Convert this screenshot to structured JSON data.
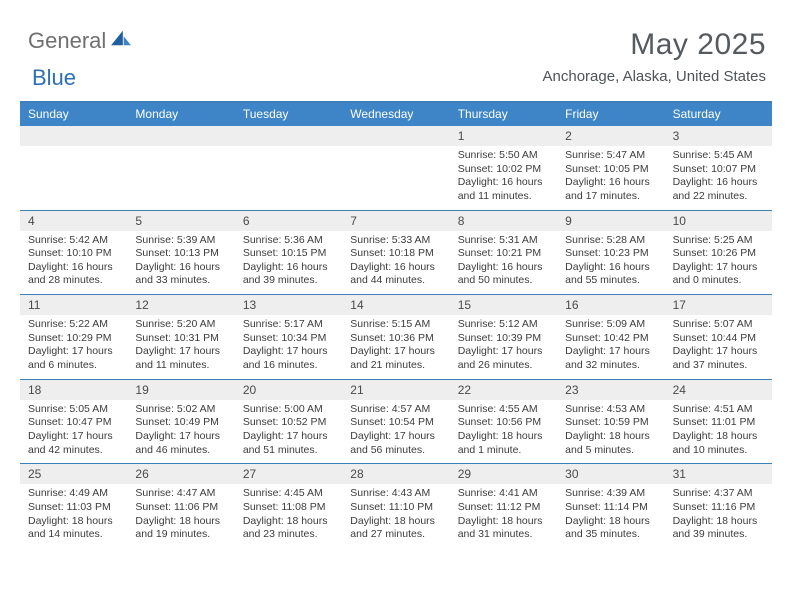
{
  "brand": {
    "part1": "General",
    "part2": "Blue"
  },
  "title": "May 2025",
  "location": "Anchorage, Alaska, United States",
  "colors": {
    "header_bar": "#3d85c6",
    "top_rule": "#3d7fb8",
    "dnum_bg": "#eeeeee",
    "text": "#3c3c3c",
    "title_text": "#555a5e"
  },
  "daysOfWeek": [
    "Sunday",
    "Monday",
    "Tuesday",
    "Wednesday",
    "Thursday",
    "Friday",
    "Saturday"
  ],
  "weeks": [
    [
      {
        "n": "",
        "l1": "",
        "l2": "",
        "l3": "",
        "l4": ""
      },
      {
        "n": "",
        "l1": "",
        "l2": "",
        "l3": "",
        "l4": ""
      },
      {
        "n": "",
        "l1": "",
        "l2": "",
        "l3": "",
        "l4": ""
      },
      {
        "n": "",
        "l1": "",
        "l2": "",
        "l3": "",
        "l4": ""
      },
      {
        "n": "1",
        "l1": "Sunrise: 5:50 AM",
        "l2": "Sunset: 10:02 PM",
        "l3": "Daylight: 16 hours",
        "l4": "and 11 minutes."
      },
      {
        "n": "2",
        "l1": "Sunrise: 5:47 AM",
        "l2": "Sunset: 10:05 PM",
        "l3": "Daylight: 16 hours",
        "l4": "and 17 minutes."
      },
      {
        "n": "3",
        "l1": "Sunrise: 5:45 AM",
        "l2": "Sunset: 10:07 PM",
        "l3": "Daylight: 16 hours",
        "l4": "and 22 minutes."
      }
    ],
    [
      {
        "n": "4",
        "l1": "Sunrise: 5:42 AM",
        "l2": "Sunset: 10:10 PM",
        "l3": "Daylight: 16 hours",
        "l4": "and 28 minutes."
      },
      {
        "n": "5",
        "l1": "Sunrise: 5:39 AM",
        "l2": "Sunset: 10:13 PM",
        "l3": "Daylight: 16 hours",
        "l4": "and 33 minutes."
      },
      {
        "n": "6",
        "l1": "Sunrise: 5:36 AM",
        "l2": "Sunset: 10:15 PM",
        "l3": "Daylight: 16 hours",
        "l4": "and 39 minutes."
      },
      {
        "n": "7",
        "l1": "Sunrise: 5:33 AM",
        "l2": "Sunset: 10:18 PM",
        "l3": "Daylight: 16 hours",
        "l4": "and 44 minutes."
      },
      {
        "n": "8",
        "l1": "Sunrise: 5:31 AM",
        "l2": "Sunset: 10:21 PM",
        "l3": "Daylight: 16 hours",
        "l4": "and 50 minutes."
      },
      {
        "n": "9",
        "l1": "Sunrise: 5:28 AM",
        "l2": "Sunset: 10:23 PM",
        "l3": "Daylight: 16 hours",
        "l4": "and 55 minutes."
      },
      {
        "n": "10",
        "l1": "Sunrise: 5:25 AM",
        "l2": "Sunset: 10:26 PM",
        "l3": "Daylight: 17 hours",
        "l4": "and 0 minutes."
      }
    ],
    [
      {
        "n": "11",
        "l1": "Sunrise: 5:22 AM",
        "l2": "Sunset: 10:29 PM",
        "l3": "Daylight: 17 hours",
        "l4": "and 6 minutes."
      },
      {
        "n": "12",
        "l1": "Sunrise: 5:20 AM",
        "l2": "Sunset: 10:31 PM",
        "l3": "Daylight: 17 hours",
        "l4": "and 11 minutes."
      },
      {
        "n": "13",
        "l1": "Sunrise: 5:17 AM",
        "l2": "Sunset: 10:34 PM",
        "l3": "Daylight: 17 hours",
        "l4": "and 16 minutes."
      },
      {
        "n": "14",
        "l1": "Sunrise: 5:15 AM",
        "l2": "Sunset: 10:36 PM",
        "l3": "Daylight: 17 hours",
        "l4": "and 21 minutes."
      },
      {
        "n": "15",
        "l1": "Sunrise: 5:12 AM",
        "l2": "Sunset: 10:39 PM",
        "l3": "Daylight: 17 hours",
        "l4": "and 26 minutes."
      },
      {
        "n": "16",
        "l1": "Sunrise: 5:09 AM",
        "l2": "Sunset: 10:42 PM",
        "l3": "Daylight: 17 hours",
        "l4": "and 32 minutes."
      },
      {
        "n": "17",
        "l1": "Sunrise: 5:07 AM",
        "l2": "Sunset: 10:44 PM",
        "l3": "Daylight: 17 hours",
        "l4": "and 37 minutes."
      }
    ],
    [
      {
        "n": "18",
        "l1": "Sunrise: 5:05 AM",
        "l2": "Sunset: 10:47 PM",
        "l3": "Daylight: 17 hours",
        "l4": "and 42 minutes."
      },
      {
        "n": "19",
        "l1": "Sunrise: 5:02 AM",
        "l2": "Sunset: 10:49 PM",
        "l3": "Daylight: 17 hours",
        "l4": "and 46 minutes."
      },
      {
        "n": "20",
        "l1": "Sunrise: 5:00 AM",
        "l2": "Sunset: 10:52 PM",
        "l3": "Daylight: 17 hours",
        "l4": "and 51 minutes."
      },
      {
        "n": "21",
        "l1": "Sunrise: 4:57 AM",
        "l2": "Sunset: 10:54 PM",
        "l3": "Daylight: 17 hours",
        "l4": "and 56 minutes."
      },
      {
        "n": "22",
        "l1": "Sunrise: 4:55 AM",
        "l2": "Sunset: 10:56 PM",
        "l3": "Daylight: 18 hours",
        "l4": "and 1 minute."
      },
      {
        "n": "23",
        "l1": "Sunrise: 4:53 AM",
        "l2": "Sunset: 10:59 PM",
        "l3": "Daylight: 18 hours",
        "l4": "and 5 minutes."
      },
      {
        "n": "24",
        "l1": "Sunrise: 4:51 AM",
        "l2": "Sunset: 11:01 PM",
        "l3": "Daylight: 18 hours",
        "l4": "and 10 minutes."
      }
    ],
    [
      {
        "n": "25",
        "l1": "Sunrise: 4:49 AM",
        "l2": "Sunset: 11:03 PM",
        "l3": "Daylight: 18 hours",
        "l4": "and 14 minutes."
      },
      {
        "n": "26",
        "l1": "Sunrise: 4:47 AM",
        "l2": "Sunset: 11:06 PM",
        "l3": "Daylight: 18 hours",
        "l4": "and 19 minutes."
      },
      {
        "n": "27",
        "l1": "Sunrise: 4:45 AM",
        "l2": "Sunset: 11:08 PM",
        "l3": "Daylight: 18 hours",
        "l4": "and 23 minutes."
      },
      {
        "n": "28",
        "l1": "Sunrise: 4:43 AM",
        "l2": "Sunset: 11:10 PM",
        "l3": "Daylight: 18 hours",
        "l4": "and 27 minutes."
      },
      {
        "n": "29",
        "l1": "Sunrise: 4:41 AM",
        "l2": "Sunset: 11:12 PM",
        "l3": "Daylight: 18 hours",
        "l4": "and 31 minutes."
      },
      {
        "n": "30",
        "l1": "Sunrise: 4:39 AM",
        "l2": "Sunset: 11:14 PM",
        "l3": "Daylight: 18 hours",
        "l4": "and 35 minutes."
      },
      {
        "n": "31",
        "l1": "Sunrise: 4:37 AM",
        "l2": "Sunset: 11:16 PM",
        "l3": "Daylight: 18 hours",
        "l4": "and 39 minutes."
      }
    ]
  ]
}
